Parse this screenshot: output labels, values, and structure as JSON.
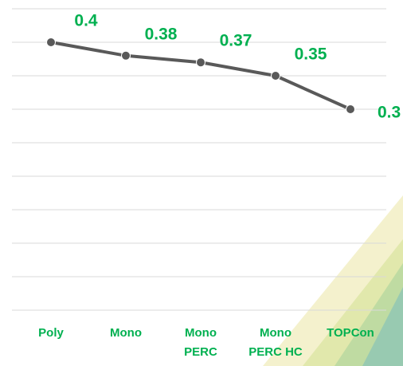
{
  "chart_data": {
    "type": "line",
    "categories": [
      "Poly",
      "Mono",
      "Mono\nPERC",
      "Mono\nPERC HC",
      "TOPCon"
    ],
    "values": [
      0.4,
      0.38,
      0.37,
      0.35,
      0.3
    ],
    "color": "#595959",
    "label_color": "#00b050",
    "ylim": [
      0,
      0.45
    ],
    "yticks": [
      0,
      0.05,
      0.1,
      0.15,
      0.2,
      0.25,
      0.3,
      0.35,
      0.4,
      0.45
    ],
    "grid": true
  }
}
